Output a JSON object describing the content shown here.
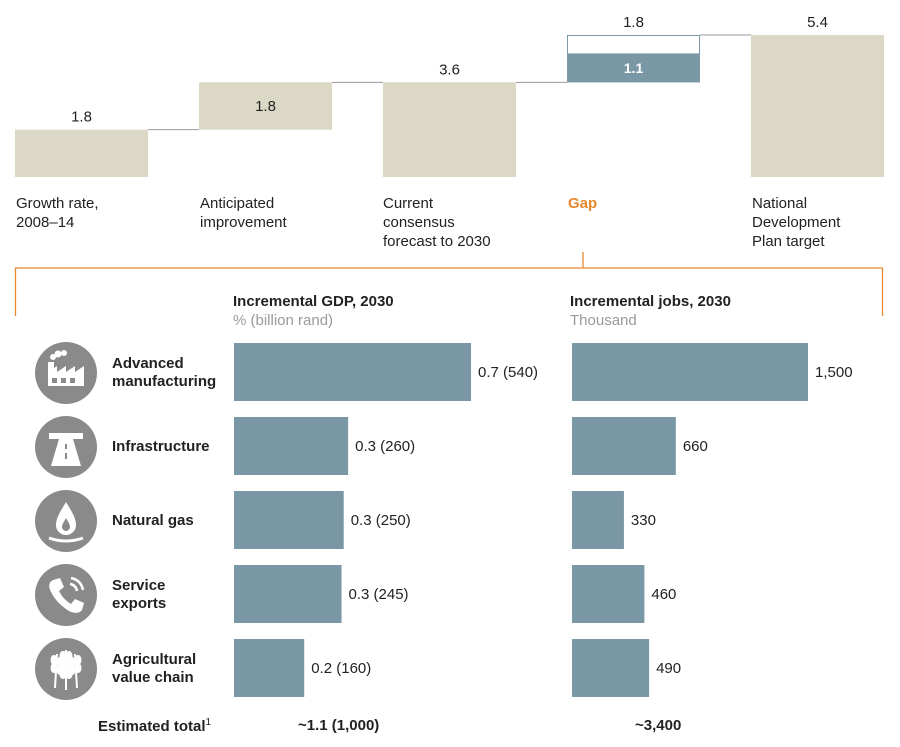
{
  "chart_data": [
    {
      "type": "waterfall",
      "steps": [
        {
          "label": "Growth rate, 2008–14",
          "value": 1.8,
          "kind": "base"
        },
        {
          "label": "Anticipated improvement",
          "value": 1.8,
          "kind": "increment"
        },
        {
          "label": "Current consensus forecast to 2030",
          "value": 3.6,
          "kind": "subtotal"
        },
        {
          "label": "Gap",
          "value": 1.8,
          "inner_value": 1.1,
          "kind": "gap"
        },
        {
          "label": "National Development Plan target",
          "value": 5.4,
          "kind": "total"
        }
      ],
      "ylim": [
        0,
        5.4
      ]
    },
    {
      "type": "bar",
      "orientation": "horizontal",
      "title": "Incremental GDP, 2030",
      "subtitle": "% (billion rand)",
      "categories": [
        "Advanced manufacturing",
        "Infrastructure",
        "Natural gas",
        "Service exports",
        "Agricultural value chain"
      ],
      "values": [
        0.7,
        0.3,
        0.3,
        0.3,
        0.2
      ],
      "labels": [
        "0.7 (540)",
        "0.3 (260)",
        "0.3 (250)",
        "0.3 (245)",
        "0.2 (160)"
      ],
      "bar_scale": [
        540,
        260,
        250,
        245,
        160
      ],
      "total": "~1.1 (1,000)"
    },
    {
      "type": "bar",
      "orientation": "horizontal",
      "title": "Incremental jobs, 2030",
      "subtitle": "Thousand",
      "categories": [
        "Advanced manufacturing",
        "Infrastructure",
        "Natural gas",
        "Service exports",
        "Agricultural value chain"
      ],
      "values": [
        1500,
        660,
        330,
        460,
        490
      ],
      "labels": [
        "1,500",
        "660",
        "330",
        "460",
        "490"
      ],
      "total": "~3,400"
    }
  ],
  "waterfall_labels": {
    "growth": "Growth rate,\n2008–14",
    "improvement": "Anticipated\nimprovement",
    "consensus": "Current\nconsensus\nforecast to 2030",
    "gap": "Gap",
    "target": "National\nDevelopment\nPlan target"
  },
  "categories": [
    {
      "name": "Advanced\nmanufacturing",
      "icon": "factory-icon"
    },
    {
      "name": "Infrastructure",
      "icon": "road-icon"
    },
    {
      "name": "Natural gas",
      "icon": "gas-flame-icon"
    },
    {
      "name": "Service\nexports",
      "icon": "phone-icon"
    },
    {
      "name": "Agricultural\nvalue chain",
      "icon": "wheat-icon"
    }
  ],
  "gdp_header": {
    "title": "Incremental GDP, 2030",
    "subtitle": "% (billion rand)"
  },
  "jobs_header": {
    "title": "Incremental jobs, 2030",
    "subtitle": "Thousand"
  },
  "totals": {
    "label": "Estimated total",
    "footnote": "1",
    "gdp": "~1.1 (1,000)",
    "jobs": "~3,400"
  },
  "colors": {
    "beige": "#dbd8c6",
    "bar": "#7a97a6",
    "gap": "#e8892d",
    "icon": "#8a8a8a"
  }
}
